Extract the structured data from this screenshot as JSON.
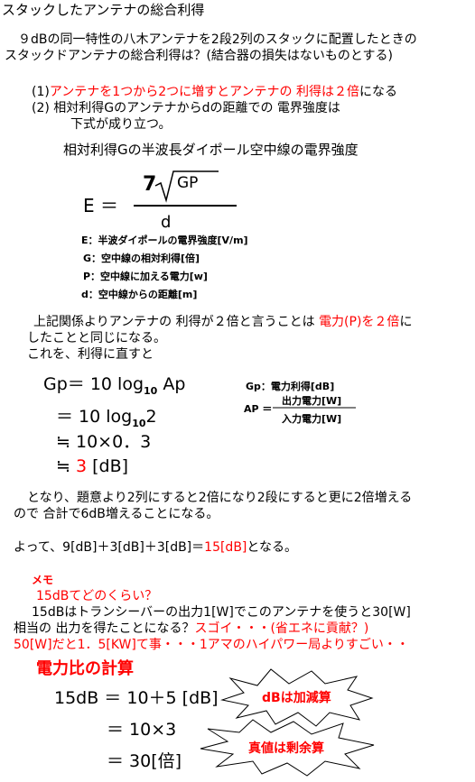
{
  "title": "スタックしたアンテナの総合利得",
  "question": [
    "９dBの同一特性の八木アンテナを2段2列のスタックに配置したときの",
    "スタックドアンテナの総合利得は？(結合器の損失はないものとする)"
  ],
  "items": [
    {
      "num": "(1)",
      "red": "アンテナを1つから2つに増すとアンテナの 利得は２倍",
      "rest": "になる"
    },
    {
      "num": "(2)",
      "text": "相対利得Gのアンテナからdの距離での 電界強度は",
      "cont": "下式が成り立つ。"
    }
  ],
  "formula": {
    "heading": "相対利得Gの半波長ダイポール空中線の電界強度",
    "lhs": "E ＝",
    "coef": "7",
    "root": "GP",
    "denom": "d",
    "legend": [
      "E：半波ダイポールの電界強度[V/m]",
      "G：空中線の相対利得[倍]",
      "P：空中線に加える電力[w]",
      "d：空中線からの距離[m]"
    ]
  },
  "para1": {
    "a": "上記関係よりアンテナの 利得が２倍と言うことは ",
    "red": "電力(P)を２倍",
    "b": "に",
    "lines": [
      "したことと同じになる。",
      "これを、利得に直すと"
    ]
  },
  "calc": {
    "l1": {
      "a": "Gp＝ 10 log",
      "sub": "10",
      "b": "Ap"
    },
    "l2": {
      "a": "＝ 10 log",
      "sub": "10",
      "b": "2"
    },
    "l3": "≒ 10×0．3",
    "l4": {
      "a": "≒ ",
      "red": "3",
      "b": " [dB]"
    },
    "def": "Gp：電力利得[dB]",
    "ap": {
      "lhs": "AP ＝",
      "num": "出力電力[W]",
      "den": "入力電力[W]"
    }
  },
  "para2": [
    "となり、題意より2列にすると2倍になり2段にすると更に2倍増える",
    "ので 合計で6dB増えることになる。"
  ],
  "result": {
    "a": "よって、9[dB]＋3[dB]＋3[dB]＝",
    "red": "15[dB]",
    "b": "となる。"
  },
  "memo": {
    "label": "メモ",
    "q": "15dBてどのくらい？",
    "l1": "15dBはトランシーバーの出力1[W]でこのアンテナを使うと30[W]",
    "l2a": "相当の 出力を得たことになる？",
    "l2red": "スゴイ・・・(省エネに貢献？)",
    "l3": "50[W]だと1．5[KW]て事・・・1アマのハイパワー局よりすごい・・"
  },
  "ratio": {
    "heading": "電力比の計算",
    "lines": [
      "15dB ＝ 10＋5 [dB]",
      "＝ 10×3",
      "＝ 30[倍]"
    ],
    "notes": [
      "dBは加減算",
      "真値は剰余算"
    ]
  }
}
